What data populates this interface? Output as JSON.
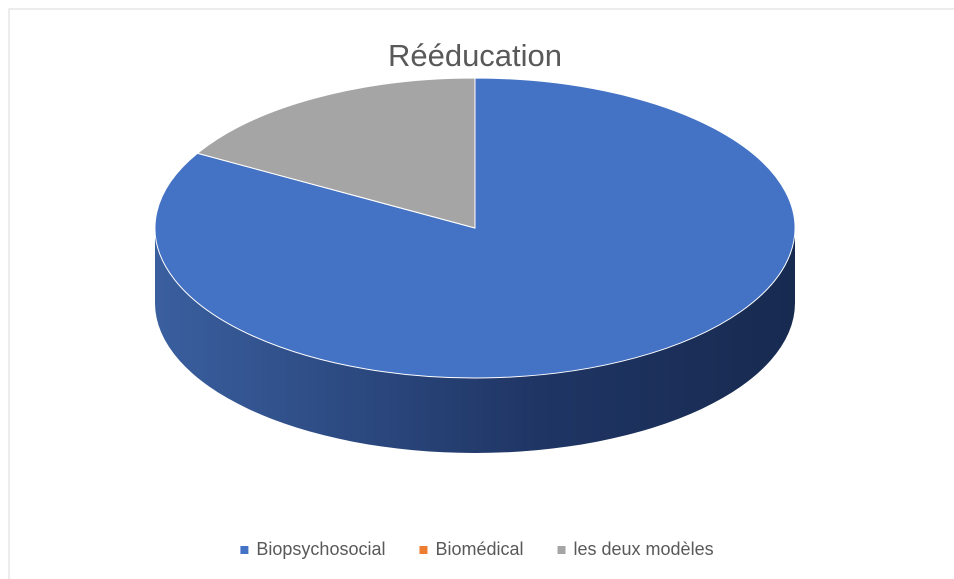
{
  "chart_data": {
    "type": "pie",
    "title": "Rééducation",
    "categories": [
      "Biopsychosocial",
      "Biomédical",
      "les deux modèles"
    ],
    "values": [
      83.3,
      0,
      16.7
    ],
    "colors": [
      "#4472c4",
      "#ed7d31",
      "#a5a5a5"
    ],
    "legend": "bottom",
    "three_d": true
  }
}
